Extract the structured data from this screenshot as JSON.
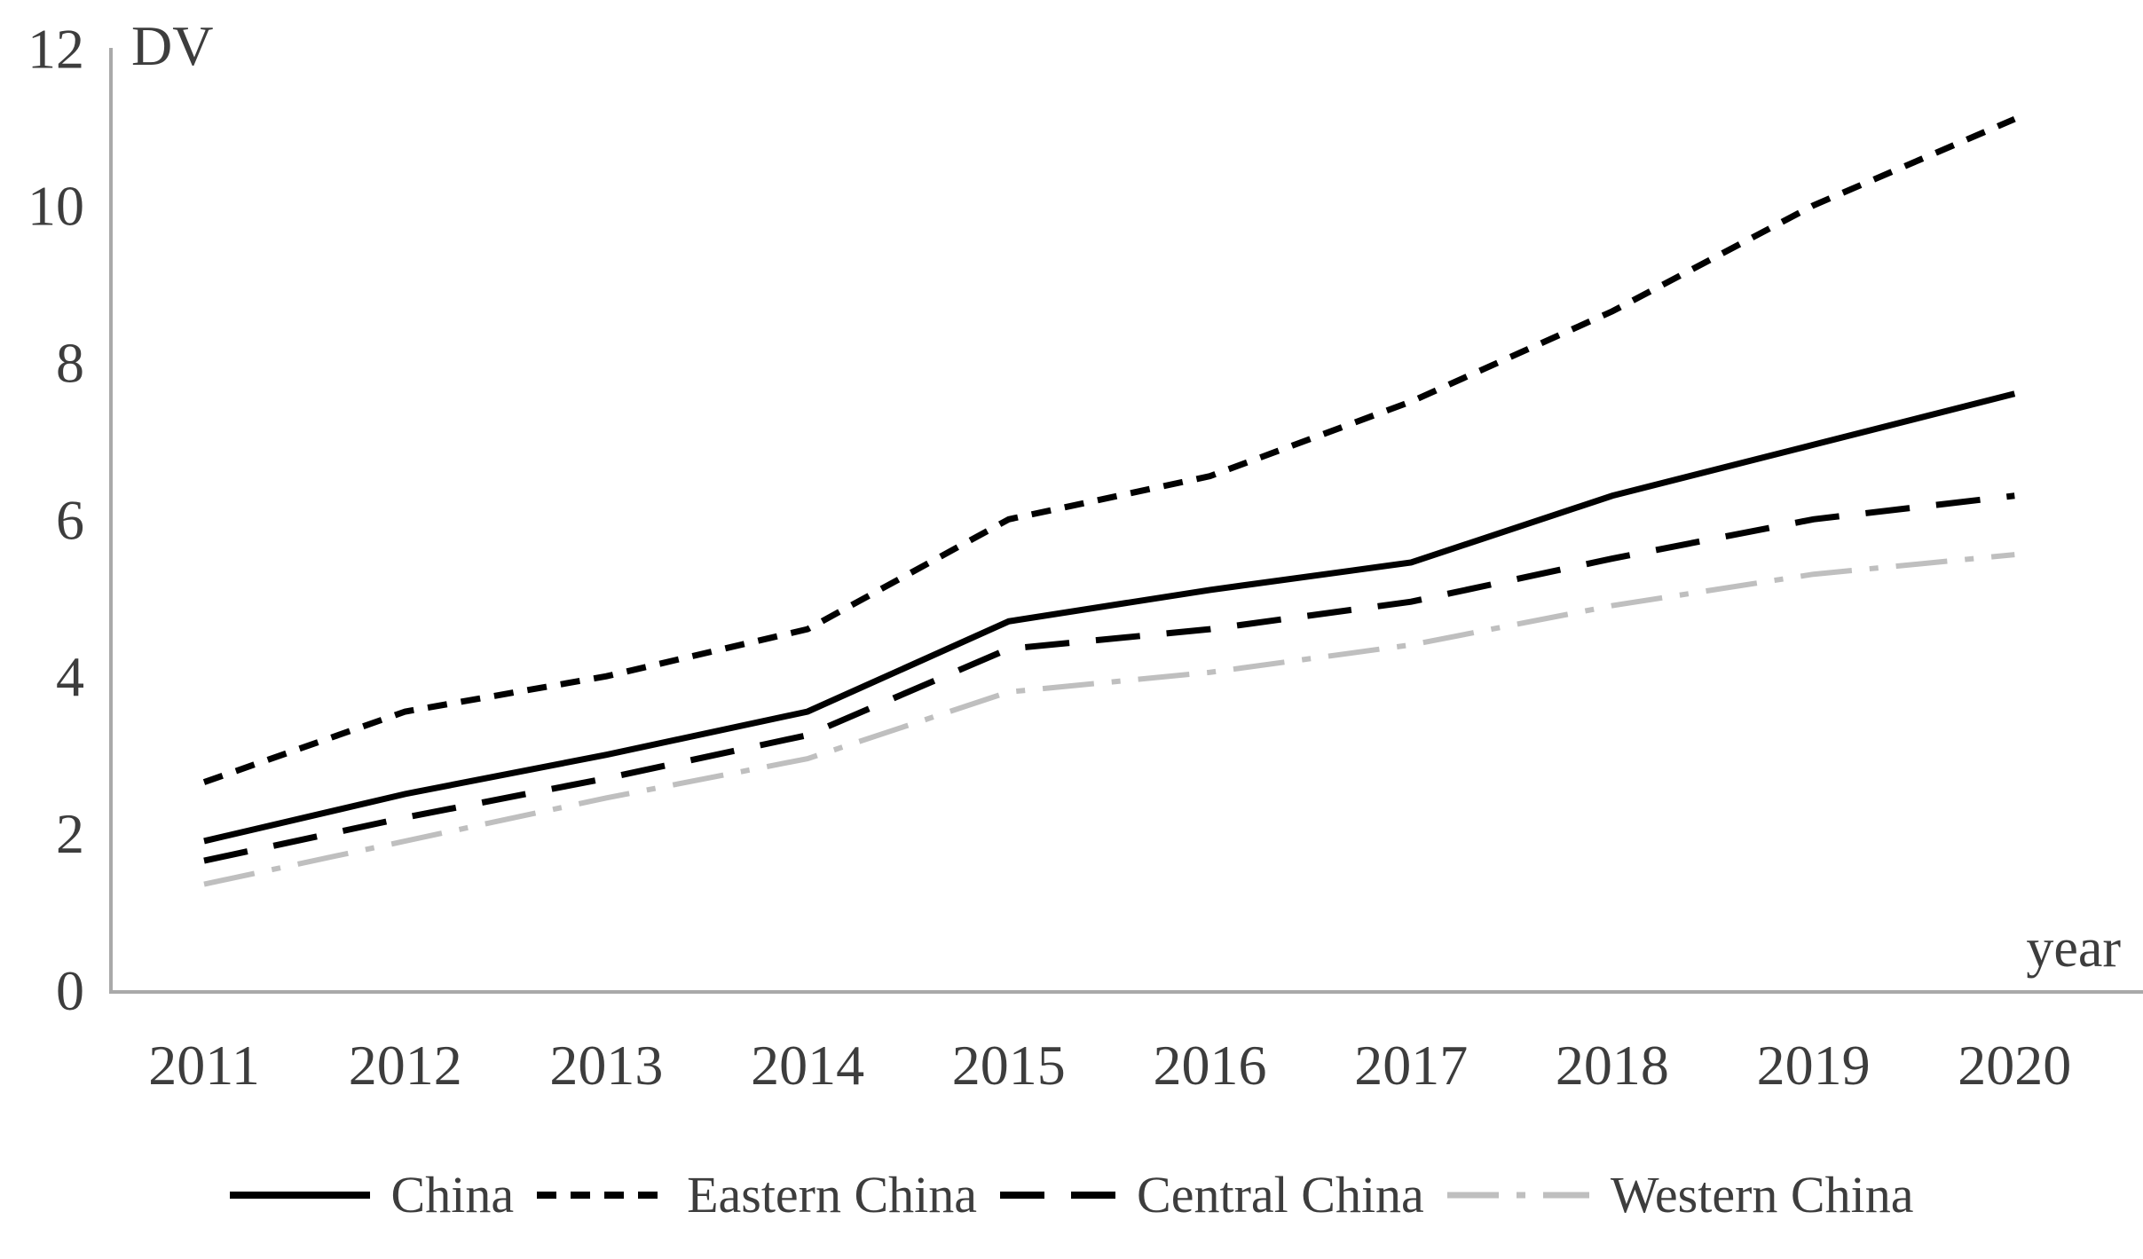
{
  "figure": {
    "y_axis_title": "DV",
    "x_axis_title": "year",
    "y_tick_labels": [
      "0",
      "2",
      "4",
      "6",
      "8",
      "10",
      "12"
    ],
    "x_tick_labels": [
      "2011",
      "2012",
      "2013",
      "2014",
      "2015",
      "2016",
      "2017",
      "2018",
      "2019",
      "2020"
    ]
  },
  "chart_data": {
    "type": "line",
    "x": [
      2011,
      2012,
      2013,
      2014,
      2015,
      2016,
      2017,
      2018,
      2019,
      2020
    ],
    "series": [
      {
        "name": "China",
        "values": [
          1.9,
          2.5,
          3.0,
          3.55,
          4.7,
          5.1,
          5.45,
          6.3,
          6.95,
          7.6
        ],
        "color": "#000000",
        "dash": "solid",
        "width": 7
      },
      {
        "name": "Eastern China",
        "values": [
          2.65,
          3.55,
          4.0,
          4.6,
          6.0,
          6.55,
          7.5,
          8.65,
          10.0,
          11.1
        ],
        "color": "#000000",
        "dash": "22 16",
        "width": 7
      },
      {
        "name": "Central China",
        "values": [
          1.65,
          2.2,
          2.7,
          3.25,
          4.35,
          4.6,
          4.95,
          5.5,
          6.0,
          6.3
        ],
        "color": "#000000",
        "dash": "50 30",
        "width": 7
      },
      {
        "name": "Western China",
        "values": [
          1.35,
          1.9,
          2.45,
          2.95,
          3.8,
          4.05,
          4.4,
          4.9,
          5.3,
          5.55
        ],
        "color": "#bfbfbf",
        "dash": "58 20 10 20",
        "width": 6
      }
    ],
    "title": "",
    "xlabel": "year",
    "ylabel": "DV",
    "ylim": [
      0,
      12
    ],
    "y_ticks": [
      0,
      2,
      4,
      6,
      8,
      10,
      12
    ],
    "grid": false,
    "legend_position": "bottom"
  },
  "colors": {
    "axis": "#a9a9a9",
    "text": "#3d3d3d",
    "background": "#ffffff"
  }
}
